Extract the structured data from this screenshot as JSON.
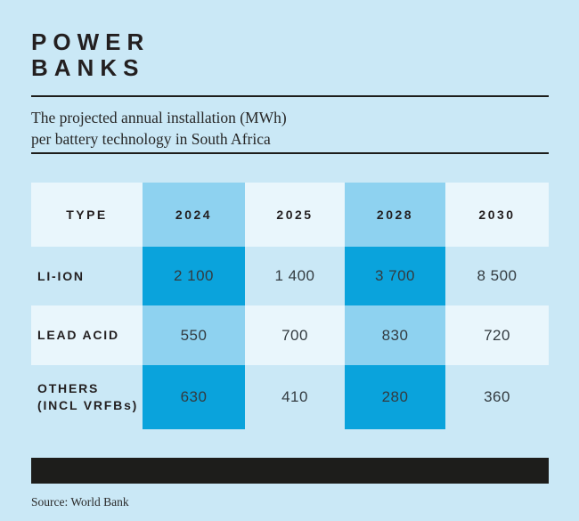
{
  "title": {
    "line1": "POWER",
    "line2": "BANKS"
  },
  "subtitle": {
    "line1": "The projected annual installation (MWh)",
    "line2": "per battery technology in South Africa"
  },
  "source": "Source: World Bank",
  "colors": {
    "page_background": "#cae8f6",
    "pale_cell": "#e9f6fc",
    "medium_cell": "#8ed2f0",
    "bright_cell": "#0aa3dc",
    "text_dark": "#231f20",
    "footer_bar": "#1d1d1b"
  },
  "table": {
    "header": [
      "TYPE",
      "2024",
      "2025",
      "2028",
      "2030"
    ],
    "rows": [
      {
        "label": "LI-ION",
        "label2": "",
        "values": [
          "2 100",
          "1 400",
          "3 700",
          "8 500"
        ]
      },
      {
        "label": "LEAD ACID",
        "label2": "",
        "values": [
          "550",
          "700",
          "830",
          "720"
        ]
      },
      {
        "label": "OTHERS",
        "label2": "(INCL VRFBs)",
        "values": [
          "630",
          "410",
          "280",
          "360"
        ]
      }
    ]
  },
  "chart_data": {
    "type": "table",
    "title": "POWER BANKS",
    "subtitle": "The projected annual installation (MWh) per battery technology in South Africa",
    "unit": "MWh",
    "columns": [
      "TYPE",
      "2024",
      "2025",
      "2028",
      "2030"
    ],
    "rows": [
      {
        "label": "LI-ION",
        "values": [
          2100,
          1400,
          3700,
          8500
        ]
      },
      {
        "label": "LEAD ACID",
        "values": [
          550,
          700,
          830,
          720
        ]
      },
      {
        "label": "OTHERS (INCL VRFBs)",
        "values": [
          630,
          410,
          280,
          360
        ]
      }
    ],
    "highlighted_columns": [
      "2024",
      "2028"
    ],
    "source": "World Bank"
  }
}
